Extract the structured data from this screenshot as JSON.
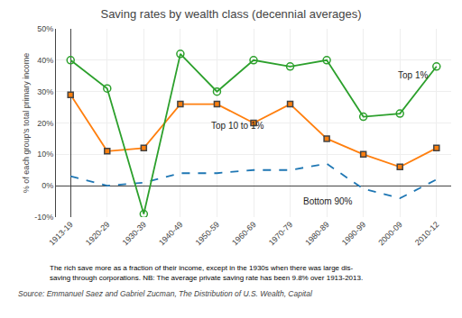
{
  "chart_data": {
    "type": "line",
    "title": "Saving rates by wealth class (decennial averages)",
    "ylabel": "% of each group's total primary income",
    "categories": [
      "1913-19",
      "1920-29",
      "1930-39",
      "1940-49",
      "1950-59",
      "1960-69",
      "1970-79",
      "1980-89",
      "1990-99",
      "2000-09",
      "2010-12"
    ],
    "series": [
      {
        "name": "Bottom 90%",
        "values": [
          3,
          0,
          1,
          4,
          4,
          5,
          5,
          7,
          -1,
          -4,
          2
        ],
        "marker": "none",
        "line_style": "dashed"
      },
      {
        "name": "Top 10 to 1%",
        "values": [
          29,
          11,
          12,
          26,
          26,
          20,
          26,
          15,
          10,
          6,
          12
        ],
        "marker": "square",
        "line_style": "solid"
      },
      {
        "name": "Top 1%",
        "values": [
          40,
          31,
          -9,
          42,
          30,
          40,
          38,
          40,
          22,
          23,
          38
        ],
        "marker": "circle-open",
        "line_style": "solid"
      }
    ],
    "ylim": [
      -10,
      50
    ],
    "yticks": [
      {
        "value": -10,
        "label": "-10%"
      },
      {
        "value": 0,
        "label": "0%"
      },
      {
        "value": 10,
        "label": "10%"
      },
      {
        "value": 20,
        "label": "20%"
      },
      {
        "value": 30,
        "label": "30%"
      },
      {
        "value": 40,
        "label": "40%"
      },
      {
        "value": 50,
        "label": "50%"
      }
    ],
    "grid": true,
    "caption": [
      "The rich save more as a fraction of their income, except in the 1930s when there was large dis-",
      "saving through corporations. NB: The average private saving rate has been 9.8% over 1913-2013."
    ],
    "source": "Source: Emmanuel Saez and Gabriel Zucman, The Distribution of U.S. Wealth, Capital"
  }
}
